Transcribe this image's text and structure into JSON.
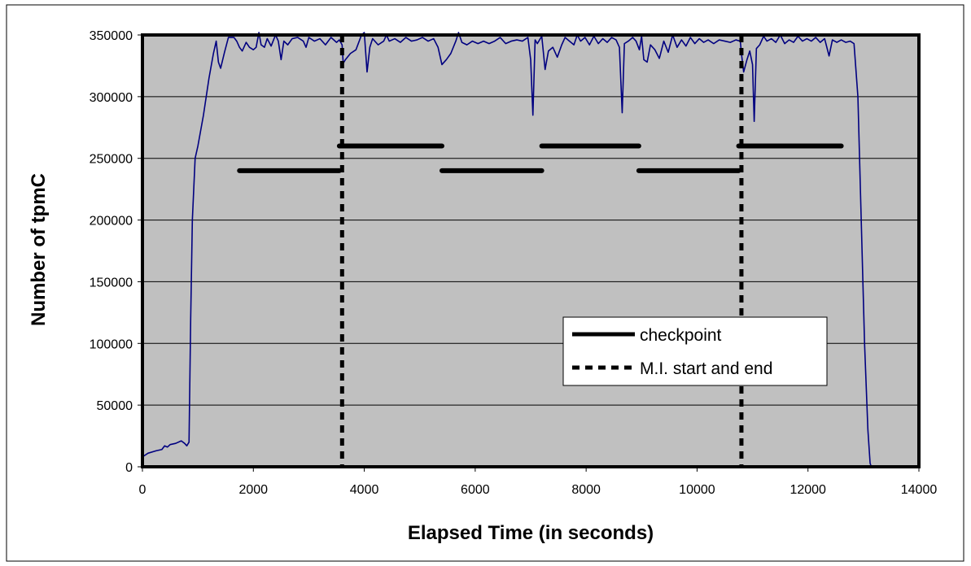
{
  "chart_data": {
    "type": "line",
    "xlabel": "Elapsed Time (in seconds)",
    "ylabel": "Number of tpmC",
    "xlim": [
      0,
      14000
    ],
    "ylim": [
      0,
      350000
    ],
    "x_ticks": [
      "0",
      "2000",
      "4000",
      "6000",
      "8000",
      "10000",
      "12000",
      "14000"
    ],
    "y_ticks": [
      "0",
      "50000",
      "100000",
      "150000",
      "200000",
      "250000",
      "300000",
      "350000"
    ],
    "grid": "horizontal",
    "legend_placement": "center-right",
    "colors": {
      "plot_bg": "#c0c0c0",
      "series": "#000080",
      "marker": "#000000"
    },
    "series": [
      {
        "values": [
          [
            0,
            8000
          ],
          [
            100,
            11000
          ],
          [
            250,
            13000
          ],
          [
            350,
            14000
          ],
          [
            400,
            17000
          ],
          [
            450,
            16000
          ],
          [
            500,
            18000
          ],
          [
            600,
            19000
          ],
          [
            700,
            21000
          ],
          [
            760,
            19000
          ],
          [
            800,
            17000
          ],
          [
            840,
            20000
          ],
          [
            870,
            120000
          ],
          [
            900,
            200000
          ],
          [
            950,
            250000
          ],
          [
            1000,
            260000
          ],
          [
            1100,
            285000
          ],
          [
            1200,
            315000
          ],
          [
            1280,
            335000
          ],
          [
            1330,
            345000
          ],
          [
            1370,
            328000
          ],
          [
            1410,
            323000
          ],
          [
            1480,
            336000
          ],
          [
            1550,
            348000
          ],
          [
            1650,
            348000
          ],
          [
            1700,
            345000
          ],
          [
            1750,
            340000
          ],
          [
            1800,
            337000
          ],
          [
            1870,
            344000
          ],
          [
            1930,
            340000
          ],
          [
            2000,
            338000
          ],
          [
            2050,
            340000
          ],
          [
            2100,
            352000
          ],
          [
            2140,
            342000
          ],
          [
            2200,
            340000
          ],
          [
            2250,
            347000
          ],
          [
            2320,
            341000
          ],
          [
            2400,
            350000
          ],
          [
            2450,
            345000
          ],
          [
            2500,
            330000
          ],
          [
            2550,
            345000
          ],
          [
            2620,
            342000
          ],
          [
            2700,
            347000
          ],
          [
            2800,
            348000
          ],
          [
            2900,
            345000
          ],
          [
            2950,
            340000
          ],
          [
            3000,
            348000
          ],
          [
            3100,
            345000
          ],
          [
            3200,
            347000
          ],
          [
            3300,
            342000
          ],
          [
            3400,
            348000
          ],
          [
            3500,
            344000
          ],
          [
            3550,
            346000
          ],
          [
            3600,
            342000
          ],
          [
            3620,
            327000
          ],
          [
            3660,
            330000
          ],
          [
            3750,
            335000
          ],
          [
            3850,
            338000
          ],
          [
            3950,
            350000
          ],
          [
            4000,
            352000
          ],
          [
            4050,
            320000
          ],
          [
            4100,
            340000
          ],
          [
            4150,
            347000
          ],
          [
            4250,
            342000
          ],
          [
            4350,
            345000
          ],
          [
            4400,
            350000
          ],
          [
            4450,
            345000
          ],
          [
            4550,
            347000
          ],
          [
            4650,
            344000
          ],
          [
            4750,
            348000
          ],
          [
            4850,
            345000
          ],
          [
            4950,
            346000
          ],
          [
            5050,
            348000
          ],
          [
            5150,
            345000
          ],
          [
            5250,
            347000
          ],
          [
            5330,
            340000
          ],
          [
            5400,
            326000
          ],
          [
            5480,
            330000
          ],
          [
            5560,
            335000
          ],
          [
            5650,
            345000
          ],
          [
            5700,
            352000
          ],
          [
            5760,
            344000
          ],
          [
            5850,
            342000
          ],
          [
            5950,
            345000
          ],
          [
            6050,
            343000
          ],
          [
            6150,
            345000
          ],
          [
            6250,
            343000
          ],
          [
            6350,
            345000
          ],
          [
            6450,
            348000
          ],
          [
            6550,
            343000
          ],
          [
            6650,
            345000
          ],
          [
            6750,
            346000
          ],
          [
            6850,
            345000
          ],
          [
            6950,
            348000
          ],
          [
            7000,
            330000
          ],
          [
            7040,
            285000
          ],
          [
            7080,
            346000
          ],
          [
            7120,
            343000
          ],
          [
            7200,
            349000
          ],
          [
            7260,
            322000
          ],
          [
            7320,
            337000
          ],
          [
            7400,
            340000
          ],
          [
            7480,
            332000
          ],
          [
            7560,
            342000
          ],
          [
            7620,
            348000
          ],
          [
            7700,
            345000
          ],
          [
            7780,
            342000
          ],
          [
            7840,
            350000
          ],
          [
            7900,
            345000
          ],
          [
            7980,
            348000
          ],
          [
            8060,
            342000
          ],
          [
            8140,
            349000
          ],
          [
            8220,
            343000
          ],
          [
            8300,
            347000
          ],
          [
            8380,
            344000
          ],
          [
            8460,
            348000
          ],
          [
            8540,
            346000
          ],
          [
            8600,
            340000
          ],
          [
            8650,
            287000
          ],
          [
            8690,
            343000
          ],
          [
            8760,
            345000
          ],
          [
            8840,
            348000
          ],
          [
            8900,
            345000
          ],
          [
            8960,
            338000
          ],
          [
            9000,
            349000
          ],
          [
            9040,
            330000
          ],
          [
            9100,
            328000
          ],
          [
            9160,
            342000
          ],
          [
            9240,
            338000
          ],
          [
            9320,
            331000
          ],
          [
            9400,
            345000
          ],
          [
            9480,
            336000
          ],
          [
            9560,
            350000
          ],
          [
            9640,
            340000
          ],
          [
            9720,
            346000
          ],
          [
            9800,
            341000
          ],
          [
            9880,
            348000
          ],
          [
            9960,
            343000
          ],
          [
            10040,
            347000
          ],
          [
            10120,
            344000
          ],
          [
            10200,
            346000
          ],
          [
            10300,
            343000
          ],
          [
            10400,
            346000
          ],
          [
            10500,
            345000
          ],
          [
            10600,
            344000
          ],
          [
            10700,
            346000
          ],
          [
            10780,
            345000
          ],
          [
            10800,
            335000
          ],
          [
            10840,
            320000
          ],
          [
            10900,
            330000
          ],
          [
            10950,
            337000
          ],
          [
            11000,
            326000
          ],
          [
            11030,
            280000
          ],
          [
            11070,
            339000
          ],
          [
            11130,
            342000
          ],
          [
            11200,
            349000
          ],
          [
            11260,
            345000
          ],
          [
            11340,
            347000
          ],
          [
            11420,
            344000
          ],
          [
            11500,
            350000
          ],
          [
            11580,
            343000
          ],
          [
            11660,
            346000
          ],
          [
            11740,
            344000
          ],
          [
            11820,
            349000
          ],
          [
            11900,
            345000
          ],
          [
            11980,
            347000
          ],
          [
            12060,
            345000
          ],
          [
            12140,
            348000
          ],
          [
            12220,
            344000
          ],
          [
            12300,
            347000
          ],
          [
            12380,
            333000
          ],
          [
            12440,
            346000
          ],
          [
            12520,
            344000
          ],
          [
            12600,
            346000
          ],
          [
            12680,
            344000
          ],
          [
            12760,
            345000
          ],
          [
            12830,
            343000
          ],
          [
            12900,
            300000
          ],
          [
            12960,
            200000
          ],
          [
            13020,
            100000
          ],
          [
            13080,
            30000
          ],
          [
            13120,
            3000
          ],
          [
            13140,
            0
          ]
        ]
      }
    ],
    "checkpoints": [
      [
        1750,
        3550,
        240000
      ],
      [
        3550,
        5400,
        260000
      ],
      [
        5400,
        7200,
        240000
      ],
      [
        7200,
        8950,
        260000
      ],
      [
        8950,
        10750,
        240000
      ],
      [
        10750,
        12600,
        260000
      ]
    ],
    "mi_markers": [
      3600,
      10800
    ],
    "legend": [
      {
        "label": "checkpoint",
        "style": "solid"
      },
      {
        "label": "M.I. start and end",
        "style": "dashed"
      }
    ]
  }
}
